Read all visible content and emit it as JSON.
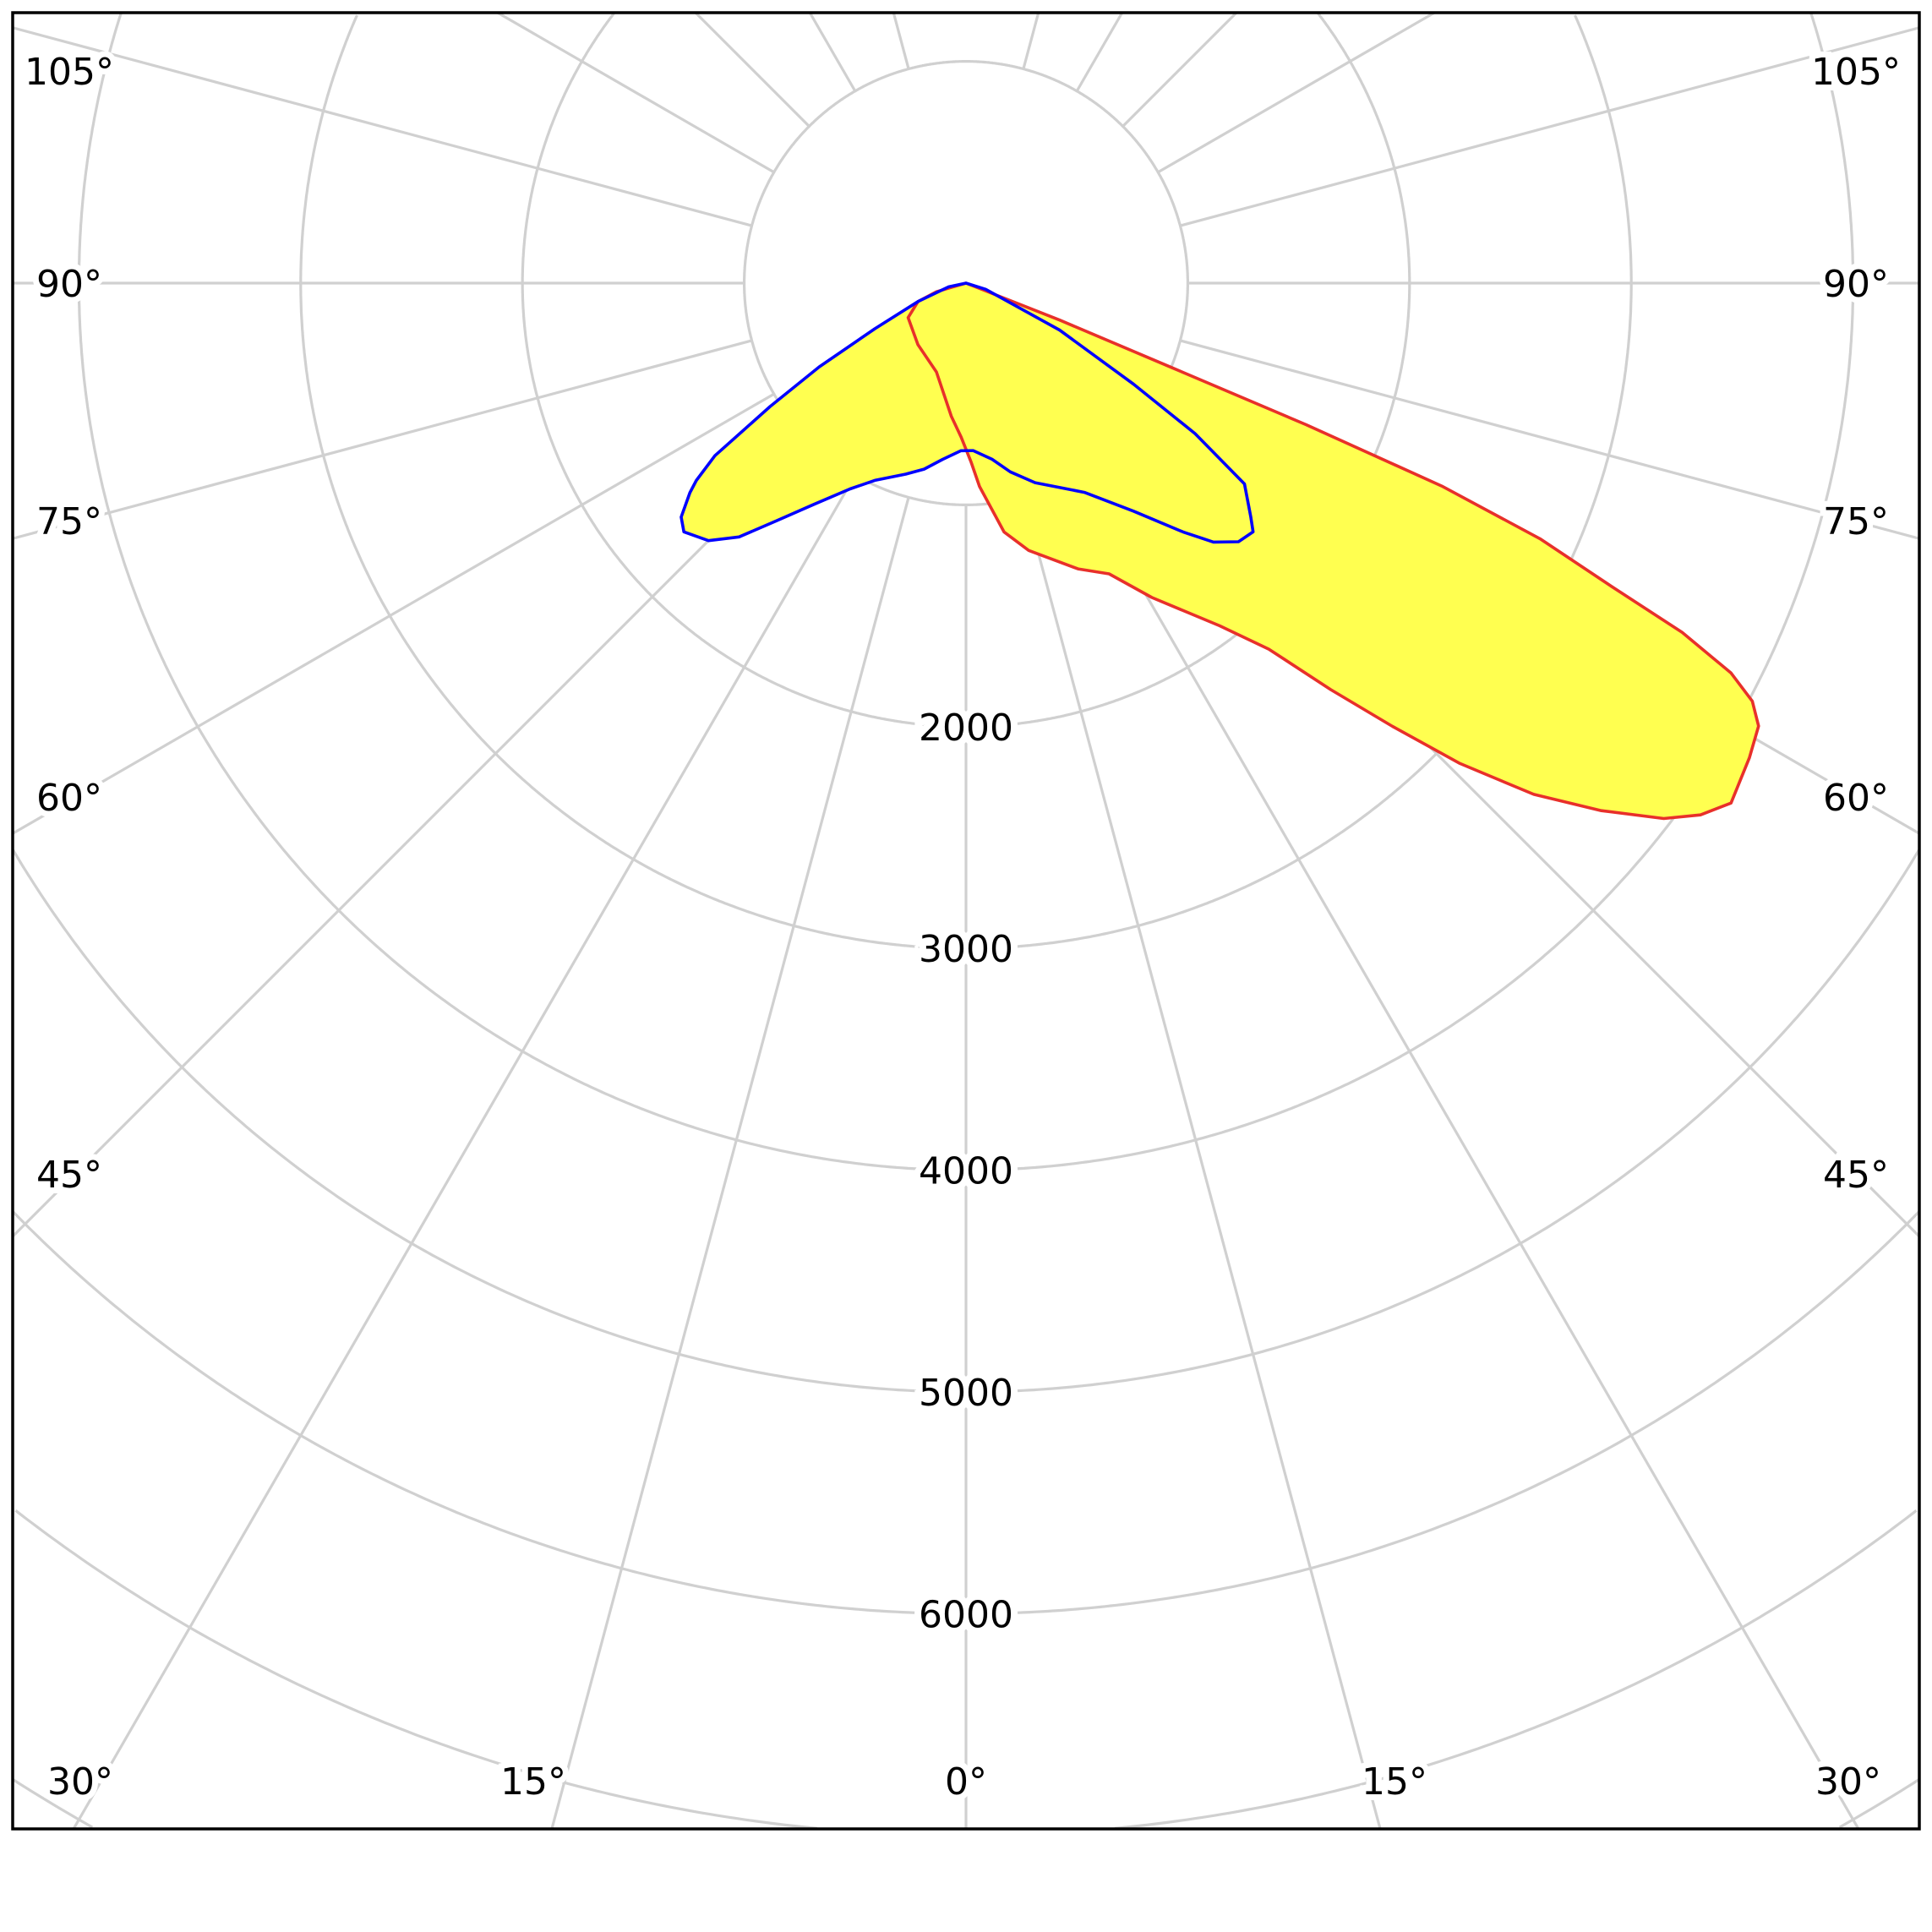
{
  "chart_data": {
    "type": "polar",
    "title": "",
    "angle_unit": "degrees",
    "angle_zero": "down",
    "radial_range": [
      0,
      9000
    ],
    "radial_ticks": [
      1000,
      2000,
      3000,
      4000,
      5000,
      6000,
      7000,
      8000,
      9000
    ],
    "radial_tick_labels": [
      "2000",
      "3000",
      "4000",
      "5000",
      "6000"
    ],
    "radial_tick_label_values": [
      2000,
      3000,
      4000,
      5000,
      6000
    ],
    "angle_ticks": [
      0,
      15,
      30,
      45,
      60,
      75,
      90,
      105,
      120,
      135,
      150,
      165
    ],
    "angle_labels": {
      "bottom": [
        "30°",
        "15°",
        "0°",
        "15°",
        "30°"
      ],
      "left": [
        "105°",
        "90°",
        "75°",
        "60°",
        "45°"
      ],
      "right": [
        "105°",
        "90°",
        "75°",
        "60°",
        "45°"
      ]
    },
    "grid": true,
    "fill_color": "#ffff50",
    "grid_color": "#d0d0d0",
    "series": [
      {
        "color": "#e8302a",
        "angles": [
          0,
          68.5,
          67.7,
          67.4,
          66.9,
          66.0,
          64.8,
          64.0,
          63.0,
          62.0,
          60.8,
          58.8,
          55.8,
          54.1,
          52.5,
          50.3,
          48.0,
          45.8,
          43.9,
          41.9,
          39.6,
          36.5,
          30.6,
          26.2,
          21.4,
          13.2,
          8.7,
          3.8,
          1.6,
          -1.8,
          -6.3,
          -18.4,
          -38.0,
          -59.2,
          -69.0,
          -73.7,
          0
        ],
        "values": [
          0,
          454,
          997,
          1661,
          2332,
          2833,
          3229,
          3593,
          3871,
          4016,
          4094,
          4130,
          4171,
          4089,
          3966,
          3724,
          3445,
          3107,
          2774,
          2463,
          2142,
          1922,
          1647,
          1461,
          1384,
          1238,
          1135,
          919,
          806,
          695,
          604,
          422,
          352,
          304,
          232,
          139,
          0
        ]
      },
      {
        "color": "#0000ff",
        "angles": [
          0,
          72.6,
          63.4,
          58.9,
          56.7,
          55.0,
          54.2,
          50.6,
          49.1,
          46.5,
          43.7,
          41.1,
          36.3,
          29.5,
          19.1,
          13.2,
          8.4,
          2.5,
          -1.7,
          -7.6,
          -12.7,
          -17.5,
          -24.8,
          -29.4,
          -34.6,
          -38.6,
          -41.8,
          -45.0,
          -48.6,
          -50.6,
          -52.8,
          -53.8,
          -55.5,
          -57.8,
          -60.3,
          -63.4,
          -69.0,
          -77.9,
          0
        ],
        "values": [
          0,
          93,
          472,
          882,
          1236,
          1432,
          1548,
          1662,
          1713,
          1694,
          1615,
          1489,
          1276,
          1084,
          952,
          874,
          803,
          756,
          756,
          802,
          860,
          903,
          980,
          1065,
          1214,
          1372,
          1535,
          1642,
          1696,
          1662,
          1563,
          1507,
          1374,
          1044,
          762,
          460,
          232,
          80,
          0
        ]
      }
    ]
  }
}
